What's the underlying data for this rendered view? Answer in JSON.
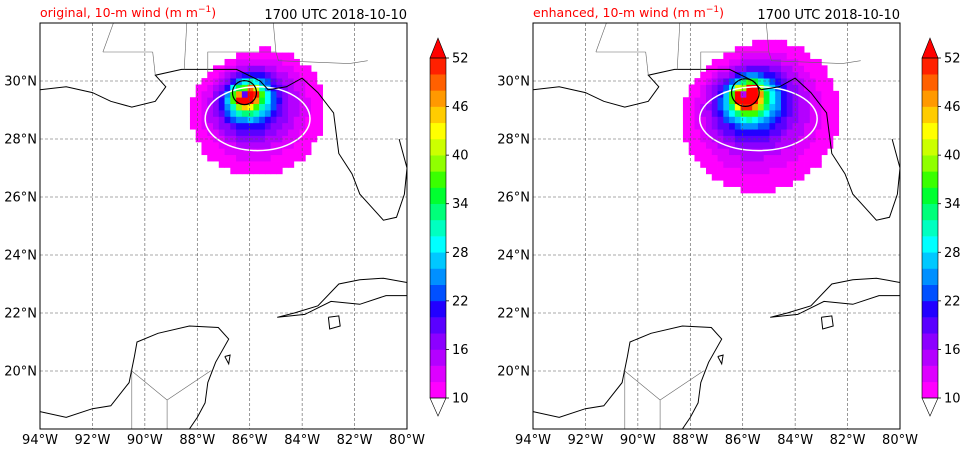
{
  "panels": [
    {
      "id": "original",
      "title_left": "original, 10-m wind (m m",
      "title_sup": "−1",
      "title_close": ")",
      "title_right": "1700 UTC 2018-10-10",
      "storm": {
        "lon": -86.2,
        "lat": 29.6,
        "scale": 1.0
      }
    },
    {
      "id": "enhanced",
      "title_left": "enhanced, 10-m wind (m m",
      "title_sup": "−1",
      "title_close": ")",
      "title_right": "1700 UTC 2018-10-10",
      "storm": {
        "lon": -85.9,
        "lat": 29.6,
        "scale": 1.15
      }
    }
  ],
  "map": {
    "lon_range": [
      -94,
      -80
    ],
    "lat_range": [
      18,
      32
    ],
    "lon_ticks": [
      -94,
      -92,
      -90,
      -88,
      -86,
      -84,
      -82,
      -80
    ],
    "lon_labels": [
      "94°W",
      "92°W",
      "90°W",
      "88°W",
      "86°W",
      "84°W",
      "82°W",
      "80°W"
    ],
    "lat_ticks": [
      20,
      22,
      24,
      26,
      28,
      30
    ],
    "lat_labels": [
      "20°N",
      "22°N",
      "24°N",
      "26°N",
      "28°N",
      "30°N"
    ],
    "grid": true
  },
  "colorbar": {
    "ticks": [
      10,
      16,
      22,
      28,
      34,
      40,
      46,
      52
    ],
    "tick_labels": [
      "10",
      "16",
      "22",
      "28",
      "34",
      "40",
      "46",
      "52"
    ],
    "levels": [
      10,
      12,
      14,
      16,
      18,
      20,
      22,
      24,
      26,
      28,
      30,
      32,
      34,
      36,
      38,
      40,
      42,
      44,
      46,
      48,
      50,
      52
    ],
    "colors": [
      "#ff00ff",
      "#dd00ff",
      "#b400ff",
      "#8c00ff",
      "#5a00ff",
      "#2200ff",
      "#0050ff",
      "#0090ff",
      "#00c8ff",
      "#00ffff",
      "#00ffc0",
      "#00ff7a",
      "#00ff30",
      "#3aff00",
      "#90ff00",
      "#ccff00",
      "#ffff00",
      "#ffcc00",
      "#ff9900",
      "#ff6000",
      "#ff2000"
    ],
    "over_color": "#ff0000",
    "under_color": "#ffffff",
    "extend": "both"
  },
  "chart_data": [
    {
      "type": "heatmap",
      "title": "original, 10-m wind (m m−1)",
      "subtitle": "1700 UTC 2018-10-10",
      "x_range": [
        -94,
        -80
      ],
      "y_range": [
        18,
        32
      ],
      "storm_center": {
        "lon": -86.2,
        "lat": 29.6
      },
      "max_wind": 52,
      "colorbar_range": [
        10,
        52
      ]
    },
    {
      "type": "heatmap",
      "title": "enhanced, 10-m wind (m m−1)",
      "subtitle": "1700 UTC 2018-10-10",
      "x_range": [
        -94,
        -80
      ],
      "y_range": [
        18,
        32
      ],
      "storm_center": {
        "lon": -85.9,
        "lat": 29.6
      },
      "max_wind": 52,
      "colorbar_range": [
        10,
        52
      ]
    }
  ],
  "colors": {
    "title_left": "#ff0000",
    "grid": "#555555",
    "coast": "#000000",
    "contour": "#ffffff"
  }
}
